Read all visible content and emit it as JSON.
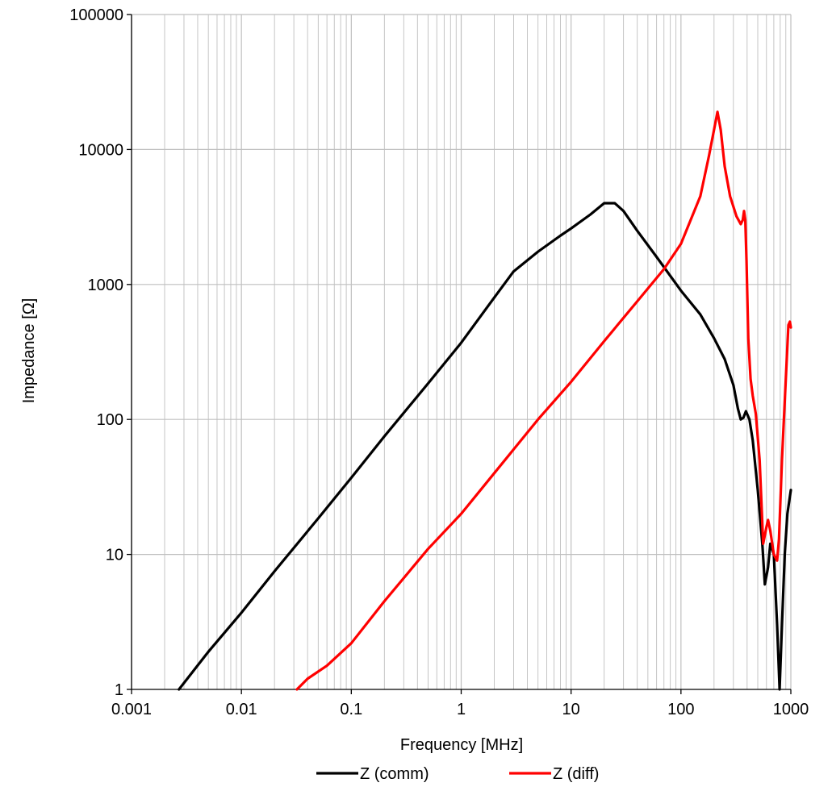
{
  "chart_data": {
    "type": "line",
    "xlabel": "Frequency [MHz]",
    "ylabel": "Impedance [Ω]",
    "x_scale": "log",
    "y_scale": "log",
    "xlim": [
      0.001,
      1000
    ],
    "ylim": [
      1,
      100000
    ],
    "x_ticks": [
      "0.001",
      "0.01",
      "0.1",
      "1",
      "10",
      "100",
      "1000"
    ],
    "y_ticks": [
      "1",
      "10",
      "100",
      "1000",
      "10000",
      "100000"
    ],
    "grid": true,
    "legend_position": "bottom",
    "colors": {
      "Z (comm)": "#000000",
      "Z (diff)": "#ff0000",
      "grid": "#bfbfbf"
    },
    "series": [
      {
        "name": "Z (comm)",
        "color": "#000000",
        "points": [
          [
            0.0027,
            1
          ],
          [
            0.005,
            1.9
          ],
          [
            0.01,
            3.7
          ],
          [
            0.02,
            7.5
          ],
          [
            0.05,
            18.5
          ],
          [
            0.1,
            37
          ],
          [
            0.2,
            75
          ],
          [
            0.5,
            185
          ],
          [
            1,
            370
          ],
          [
            2,
            800
          ],
          [
            3,
            1250
          ],
          [
            5,
            1750
          ],
          [
            8,
            2300
          ],
          [
            10,
            2600
          ],
          [
            15,
            3300
          ],
          [
            20,
            4000
          ],
          [
            25,
            4000
          ],
          [
            30,
            3500
          ],
          [
            40,
            2500
          ],
          [
            60,
            1600
          ],
          [
            100,
            900
          ],
          [
            150,
            600
          ],
          [
            200,
            400
          ],
          [
            250,
            280
          ],
          [
            300,
            180
          ],
          [
            330,
            120
          ],
          [
            350,
            100
          ],
          [
            370,
            103
          ],
          [
            390,
            115
          ],
          [
            420,
            100
          ],
          [
            450,
            70
          ],
          [
            500,
            30
          ],
          [
            550,
            12
          ],
          [
            580,
            6
          ],
          [
            620,
            8
          ],
          [
            650,
            12
          ],
          [
            700,
            10
          ],
          [
            750,
            3
          ],
          [
            790,
            1
          ],
          [
            830,
            3
          ],
          [
            880,
            10
          ],
          [
            930,
            20
          ],
          [
            1000,
            30
          ]
        ]
      },
      {
        "name": "Z (diff)",
        "color": "#ff0000",
        "points": [
          [
            0.032,
            1
          ],
          [
            0.04,
            1.2
          ],
          [
            0.06,
            1.5
          ],
          [
            0.1,
            2.2
          ],
          [
            0.2,
            4.5
          ],
          [
            0.5,
            11
          ],
          [
            1,
            20
          ],
          [
            2,
            40
          ],
          [
            5,
            100
          ],
          [
            10,
            190
          ],
          [
            20,
            380
          ],
          [
            40,
            750
          ],
          [
            70,
            1300
          ],
          [
            100,
            2000
          ],
          [
            150,
            4500
          ],
          [
            180,
            9000
          ],
          [
            200,
            14000
          ],
          [
            215,
            19000
          ],
          [
            230,
            14000
          ],
          [
            250,
            7500
          ],
          [
            280,
            4500
          ],
          [
            320,
            3200
          ],
          [
            350,
            2800
          ],
          [
            365,
            3000
          ],
          [
            375,
            3500
          ],
          [
            385,
            3000
          ],
          [
            395,
            1500
          ],
          [
            410,
            400
          ],
          [
            430,
            200
          ],
          [
            450,
            150
          ],
          [
            480,
            110
          ],
          [
            520,
            50
          ],
          [
            560,
            12
          ],
          [
            600,
            16
          ],
          [
            620,
            18
          ],
          [
            650,
            15
          ],
          [
            700,
            10
          ],
          [
            750,
            9
          ],
          [
            780,
            13
          ],
          [
            830,
            50
          ],
          [
            900,
            200
          ],
          [
            950,
            500
          ],
          [
            980,
            530
          ],
          [
            1000,
            480
          ]
        ]
      }
    ]
  }
}
